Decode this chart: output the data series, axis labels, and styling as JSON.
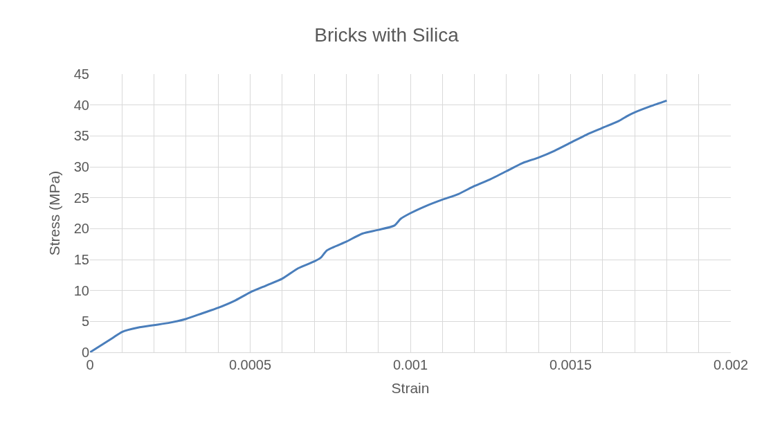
{
  "chart_data": {
    "type": "line",
    "title": "Bricks with Silica",
    "xlabel": "Strain",
    "ylabel": "Stress (MPa)",
    "x": [
      0,
      7e-05,
      0.0001,
      0.00015,
      0.0002,
      0.00025,
      0.0003,
      0.00035,
      0.0004,
      0.00045,
      0.0005,
      0.00055,
      0.0006,
      0.00065,
      0.0007,
      0.00072,
      0.00074,
      0.0008,
      0.00085,
      0.0009,
      0.00095,
      0.00097,
      0.001,
      0.00105,
      0.0011,
      0.00115,
      0.0012,
      0.00125,
      0.0013,
      0.00135,
      0.0014,
      0.00145,
      0.0015,
      0.00155,
      0.0016,
      0.00165,
      0.00168,
      0.0017,
      0.00175,
      0.0018
    ],
    "series": [
      {
        "color": "#4a7ebb",
        "values": [
          0,
          2.3,
          3.3,
          4.0,
          4.4,
          4.8,
          5.4,
          6.3,
          7.2,
          8.3,
          9.7,
          10.8,
          11.9,
          13.6,
          14.7,
          15.3,
          16.5,
          17.9,
          19.2,
          19.8,
          20.5,
          21.6,
          22.5,
          23.7,
          24.7,
          25.6,
          26.9,
          28.0,
          29.3,
          30.6,
          31.5,
          32.6,
          33.9,
          35.2,
          36.3,
          37.4,
          38.3,
          38.8,
          39.8,
          40.7
        ]
      }
    ],
    "xlim": [
      0,
      0.002
    ],
    "xticks": [
      0,
      {
        "value": 0.0001,
        "label": null
      },
      {
        "value": 0.0002,
        "label": null
      },
      {
        "value": 0.0003,
        "label": null
      },
      {
        "value": 0.0004,
        "label": null
      },
      0.0005,
      {
        "value": 0.0006,
        "label": null
      },
      {
        "value": 0.0007,
        "label": null
      },
      {
        "value": 0.0008,
        "label": null
      },
      {
        "value": 0.0009,
        "label": null
      },
      0.001,
      {
        "value": 0.0011,
        "label": null
      },
      {
        "value": 0.0012,
        "label": null
      },
      {
        "value": 0.0013,
        "label": null
      },
      {
        "value": 0.0014,
        "label": null
      },
      0.0015,
      {
        "value": 0.0016,
        "label": null
      },
      {
        "value": 0.0017,
        "label": null
      },
      {
        "value": 0.0018,
        "label": null
      },
      {
        "value": 0.0019,
        "label": null
      },
      0.002
    ],
    "ylim": [
      0,
      45
    ],
    "yticks": [
      0,
      5,
      10,
      15,
      20,
      25,
      30,
      35,
      40,
      45
    ],
    "grid": true,
    "marker": "none",
    "line_style": "solid"
  }
}
